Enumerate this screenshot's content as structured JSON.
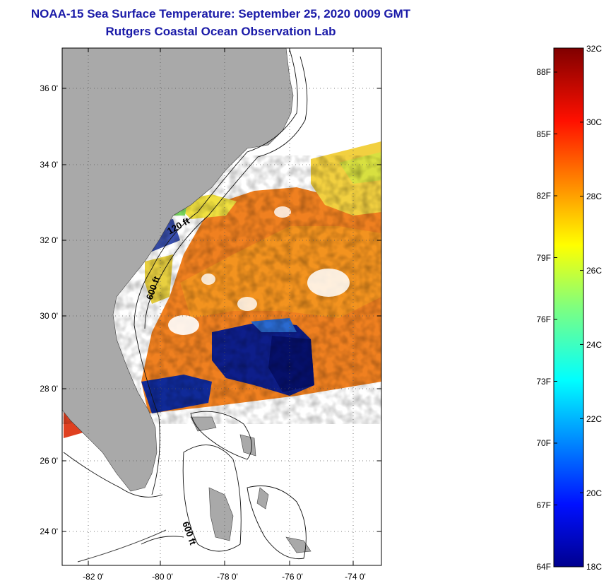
{
  "title": "NOAA-15 Sea Surface Temperature:  September 25, 2020 0009 GMT",
  "subtitle": "Rutgers Coastal Ocean Observation Lab",
  "map": {
    "lat_ticks": [
      "36 0'",
      "34 0'",
      "32 0'",
      "30 0'",
      "28 0'",
      "26 0'",
      "24 0'"
    ],
    "lon_ticks": [
      "-82 0'",
      "-80 0'",
      "-78 0'",
      "-76 0'",
      "-74 0'"
    ],
    "contour_labels": [
      "120 ft",
      "600 ft",
      "600 ft"
    ],
    "colors": {
      "land": "#a9a9a9",
      "ocean_nodata": "#ffffff",
      "grid": "#555555"
    }
  },
  "colorbar": {
    "celsius_labels": [
      "32C",
      "30C",
      "28C",
      "26C",
      "24C",
      "22C",
      "20C",
      "18C"
    ],
    "fahrenheit_labels": [
      "88F",
      "85F",
      "82F",
      "79F",
      "76F",
      "73F",
      "70F",
      "67F",
      "64F"
    ],
    "range_c": [
      18,
      32
    ]
  }
}
